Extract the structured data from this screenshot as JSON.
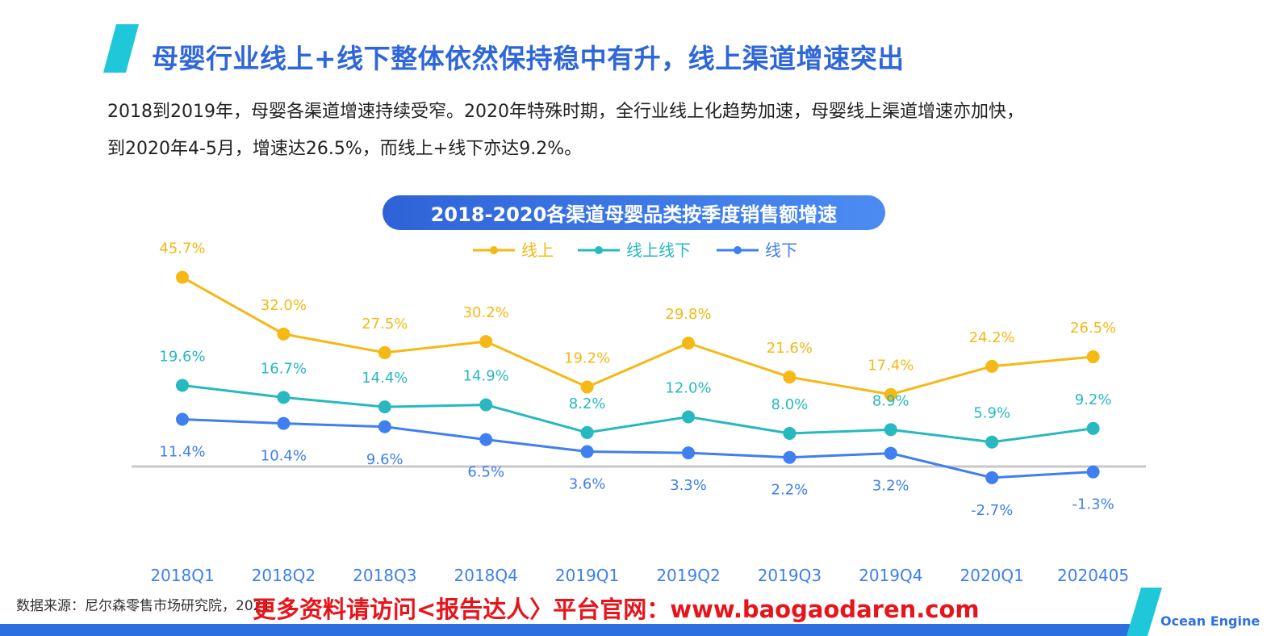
{
  "header": {
    "title": "母婴行业线上+线下整体依然保持稳中有升，线上渠道增速突出",
    "intro_line1": "2018到2019年，母婴各渠道增速持续受窄。2020年特殊时期，全行业线上化趋势加速，母婴线上渠道增速亦加快，",
    "intro_line2": "到2020年4-5月，增速达26.5%，而线上+线下亦达9.2%。"
  },
  "chart_data": {
    "type": "line",
    "title": "2018-2020各渠道母婴品类按季度销售额增速",
    "categories": [
      "2018Q1",
      "2018Q2",
      "2018Q3",
      "2018Q4",
      "2019Q1",
      "2019Q2",
      "2019Q3",
      "2019Q4",
      "2020Q1",
      "2020405"
    ],
    "ylim": [
      -5,
      50
    ],
    "baseline": 0,
    "legend_position": "top-center",
    "series": [
      {
        "name": "线上",
        "color": "#f5b814",
        "values": [
          45.7,
          32.0,
          27.5,
          30.2,
          19.2,
          29.8,
          21.6,
          17.4,
          24.2,
          26.5
        ],
        "labels": [
          "45.7%",
          "32.0%",
          "27.5%",
          "30.2%",
          "19.2%",
          "29.8%",
          "21.6%",
          "17.4%",
          "24.2%",
          "26.5%"
        ]
      },
      {
        "name": "线上线下",
        "color": "#27b8c0",
        "values": [
          19.6,
          16.7,
          14.4,
          14.9,
          8.2,
          12.0,
          8.0,
          8.9,
          5.9,
          9.2
        ],
        "labels": [
          "19.6%",
          "16.7%",
          "14.4%",
          "14.9%",
          "8.2%",
          "12.0%",
          "8.0%",
          "8.9%",
          "5.9%",
          "9.2%"
        ]
      },
      {
        "name": "线下",
        "color": "#3f7ff0",
        "values": [
          11.4,
          10.4,
          9.6,
          6.5,
          3.6,
          3.3,
          2.2,
          3.2,
          -2.7,
          -1.3
        ],
        "labels": [
          "11.4%",
          "10.4%",
          "9.6%",
          "6.5%",
          "3.6%",
          "3.3%",
          "2.2%",
          "3.2%",
          "-2.7%",
          "-1.3%"
        ]
      }
    ]
  },
  "footer": {
    "source": "数据来源：尼尔森零售市场研究院，2021",
    "promo": "更多资料请访问<报告达人〉平台官网：www.baogaodaren.com",
    "brand": "Ocean Engine"
  },
  "colors": {
    "title": "#2f67d9",
    "pill": "#2e63d8",
    "baseline": "#c8c8c8",
    "promo": "#e8141b",
    "accent": "#1ec8d8"
  }
}
